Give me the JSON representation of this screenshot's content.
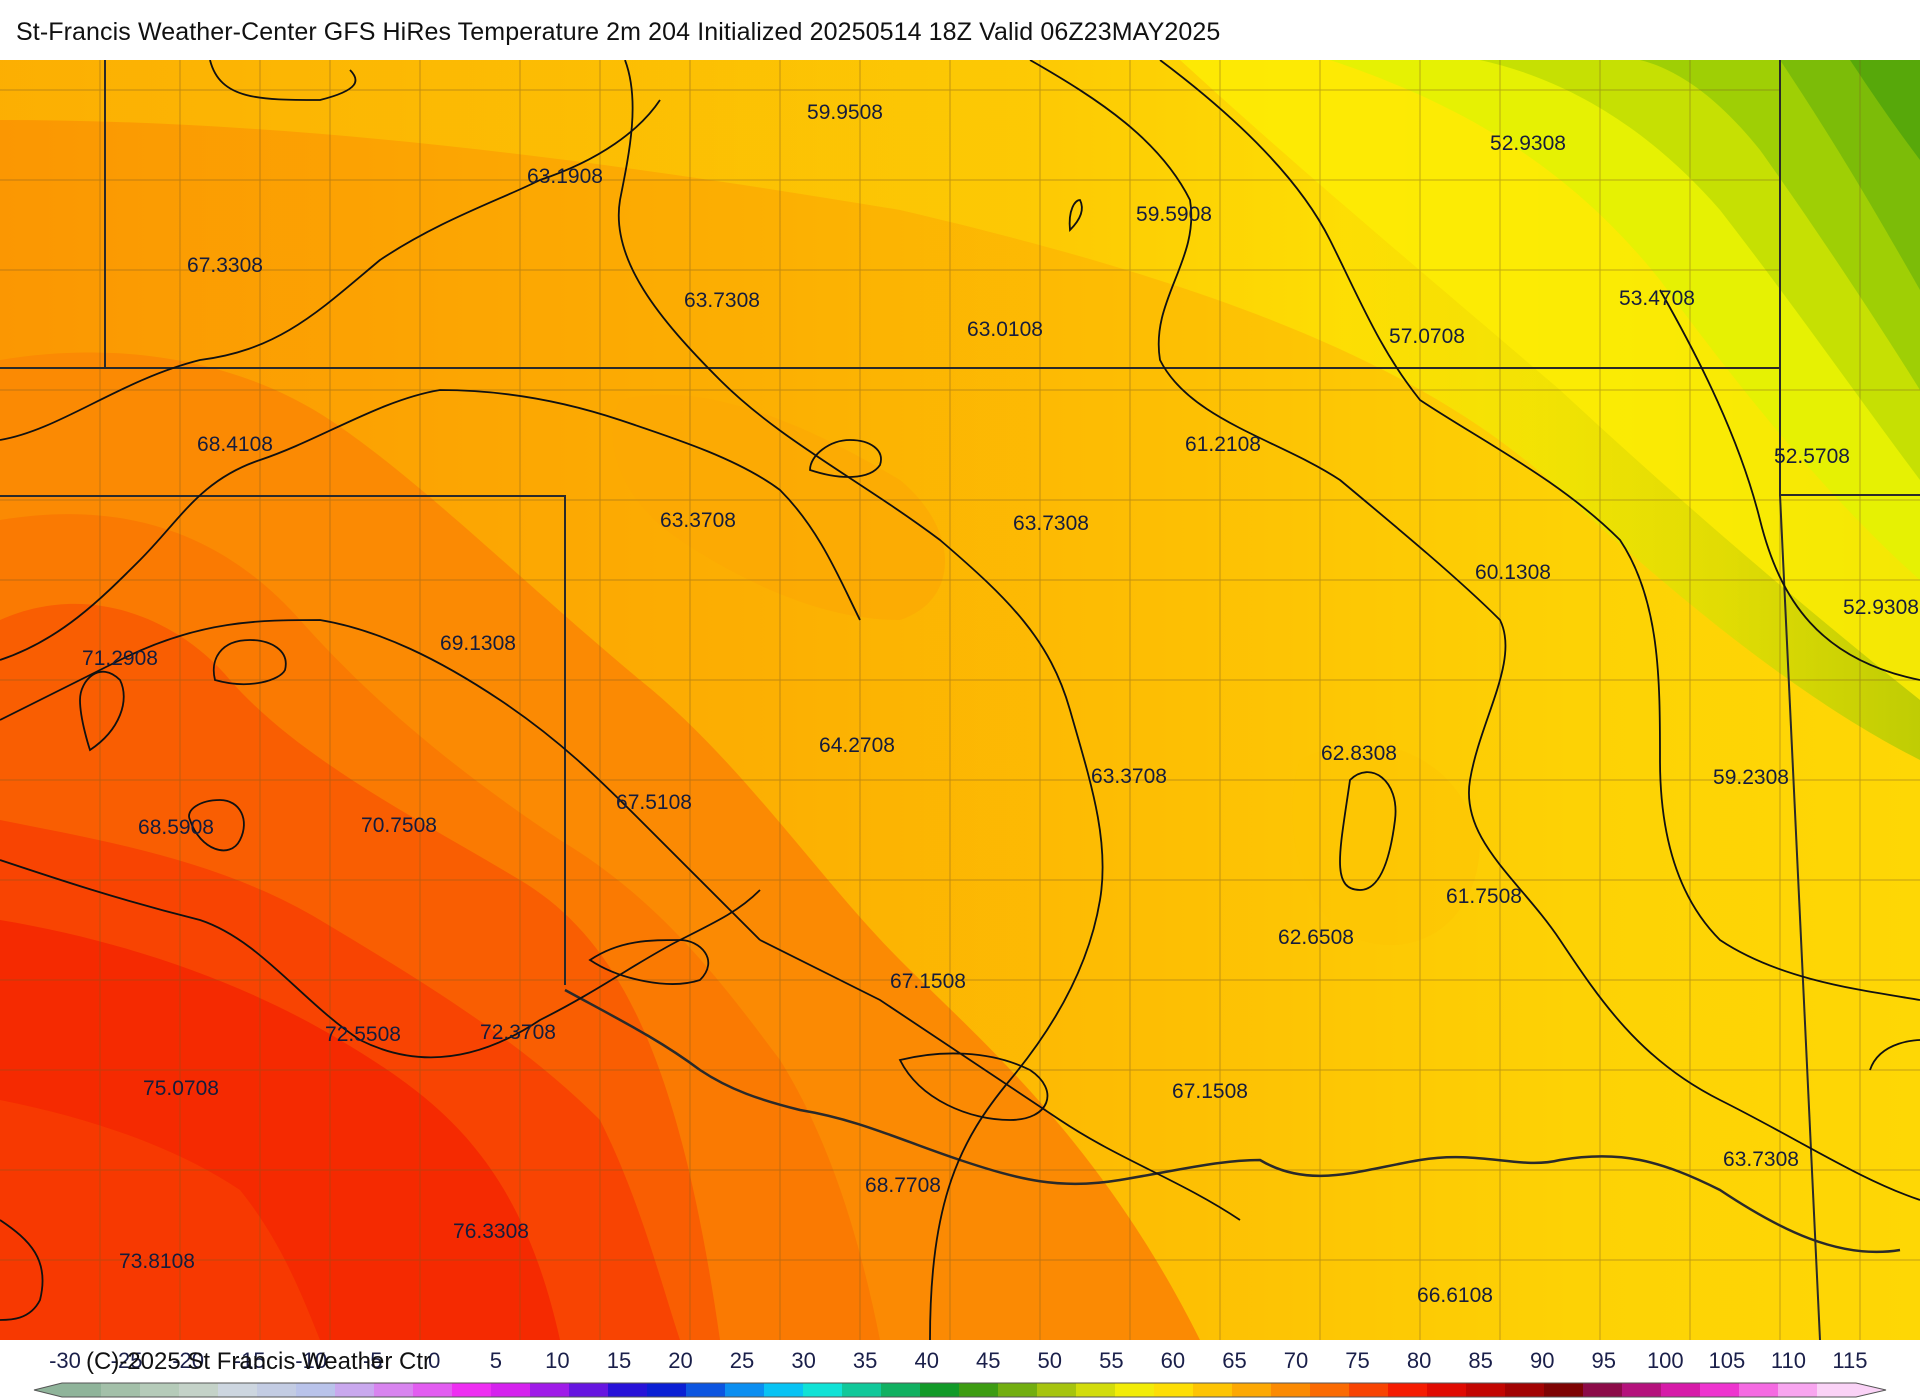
{
  "title": "St-Francis Weather-Center GFS HiRes Temperature 2m  204 Initialized 20250514 18Z Valid 06Z23MAY2025",
  "copyright": "(C)-2025 St Francis Weather Ctr",
  "field": {
    "variable": "Temperature 2m",
    "contour_labels": [
      "59.9508",
      "63.1908",
      "52.9308",
      "59.5908",
      "67.3308",
      "63.7308",
      "63.0108",
      "57.0708",
      "53.4708",
      "68.4108",
      "61.2108",
      "52.5708",
      "63.3708",
      "63.7308",
      "60.1308",
      "52.9308",
      "71.2908",
      "69.1308",
      "64.2708",
      "63.3708",
      "62.8308",
      "59.2308",
      "67.5108",
      "68.5908",
      "70.7508",
      "61.7508",
      "62.6508",
      "67.1508",
      "72.5508",
      "72.3708",
      "75.0708",
      "67.1508",
      "63.7308",
      "68.7708",
      "76.3308",
      "73.8108",
      "66.6108"
    ]
  },
  "legend": {
    "ticks": [
      "-30",
      "-25",
      "-20",
      "-15",
      "-10",
      "-5",
      "0",
      "5",
      "10",
      "15",
      "20",
      "25",
      "30",
      "35",
      "40",
      "45",
      "50",
      "55",
      "60",
      "65",
      "70",
      "75",
      "80",
      "85",
      "90",
      "95",
      "100",
      "105",
      "110",
      "115"
    ],
    "colors": [
      "#8fb49a",
      "#a3c0a9",
      "#b5cbb9",
      "#c4d2c8",
      "#cdd6e0",
      "#c3cce3",
      "#b9c3ea",
      "#c9a8ee",
      "#d884ef",
      "#e25cf0",
      "#ee2ef2",
      "#d522ee",
      "#9f1ce8",
      "#6616e0",
      "#2712d8",
      "#0a1fd4",
      "#0c55e0",
      "#0b8ef0",
      "#08c3f4",
      "#10e2d6",
      "#10c89a",
      "#10b061",
      "#119a28",
      "#3d9c12",
      "#72ae10",
      "#a6c40f",
      "#d2dc0c",
      "#f2ec08",
      "#fdde05",
      "#fdc404",
      "#fca804",
      "#fb8a03",
      "#fa6a02",
      "#f84402",
      "#f51c01",
      "#e00a01",
      "#c20501",
      "#a20202",
      "#7e0202",
      "#8c0b48",
      "#b4127c",
      "#d61aa8",
      "#ee34cf",
      "#f56ae2",
      "#f8a5ef",
      "#fad2f6"
    ]
  }
}
